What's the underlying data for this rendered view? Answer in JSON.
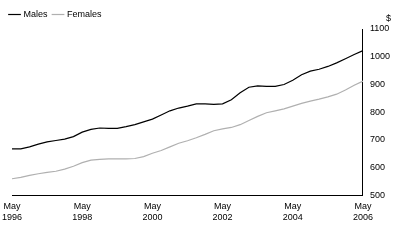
{
  "chart_data": {
    "type": "line",
    "y_label": "$",
    "categories": [
      "May 1996",
      null,
      null,
      null,
      null,
      null,
      null,
      null,
      "May 1998",
      null,
      null,
      null,
      null,
      null,
      null,
      null,
      "May 2000",
      null,
      null,
      null,
      null,
      null,
      null,
      null,
      "May 2002",
      null,
      null,
      null,
      null,
      null,
      null,
      null,
      "May 2004",
      null,
      null,
      null,
      null,
      null,
      null,
      null,
      "May 2006"
    ],
    "series": [
      {
        "name": "Males",
        "color": "#000000",
        "values": [
          668,
          668,
          675,
          685,
          693,
          698,
          703,
          712,
          728,
          738,
          743,
          742,
          742,
          748,
          755,
          765,
          775,
          790,
          805,
          815,
          822,
          830,
          830,
          828,
          830,
          845,
          870,
          890,
          895,
          893,
          893,
          900,
          915,
          935,
          948,
          955,
          965,
          978,
          993,
          1008,
          1022
        ]
      },
      {
        "name": "Females",
        "color": "#b0b0b0",
        "values": [
          560,
          565,
          572,
          578,
          583,
          587,
          595,
          605,
          618,
          627,
          630,
          632,
          632,
          632,
          633,
          640,
          652,
          662,
          675,
          688,
          697,
          708,
          720,
          733,
          740,
          745,
          755,
          770,
          785,
          798,
          805,
          812,
          822,
          832,
          840,
          847,
          855,
          865,
          880,
          897,
          912
        ]
      }
    ],
    "ylim": [
      500,
      1100
    ],
    "yticks": [
      500,
      600,
      700,
      800,
      900,
      1000,
      1100
    ],
    "grid": false,
    "legend": "upper left"
  }
}
